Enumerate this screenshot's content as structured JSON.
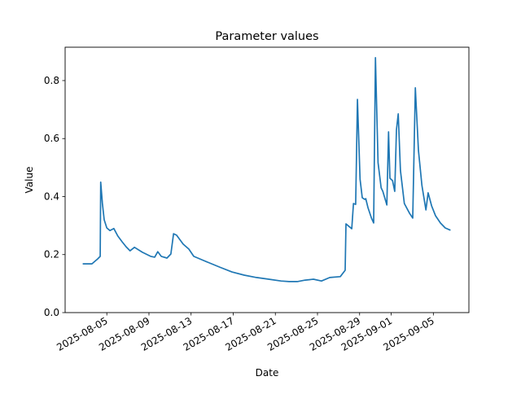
{
  "chart_data": {
    "type": "line",
    "title": "Parameter values",
    "xlabel": "Date",
    "ylabel": "Value",
    "xlim": [
      "2025-08-01T01:00",
      "2025-09-08T09:00"
    ],
    "ylim": [
      0,
      0.915
    ],
    "grid": false,
    "line_color": "#1f77b4",
    "xticks": [
      "2025-08-05",
      "2025-08-09",
      "2025-08-13",
      "2025-08-17",
      "2025-08-21",
      "2025-08-25",
      "2025-08-29",
      "2025-09-01",
      "2025-09-05"
    ],
    "yticks": [
      0.0,
      0.2,
      0.4,
      0.6,
      0.8
    ],
    "ytick_labels": [
      "0.0",
      "0.2",
      "0.4",
      "0.6",
      "0.8"
    ],
    "series": [
      {
        "x": [
          "2025-08-02T17:00",
          "2025-08-03T14:00",
          "2025-08-04T03:00",
          "2025-08-04T09:00",
          "2025-08-04T10:00",
          "2025-08-04T14:00",
          "2025-08-04T18:00",
          "2025-08-05T00:00",
          "2025-08-05T07:00",
          "2025-08-05T16:00",
          "2025-08-06T01:00",
          "2025-08-06T11:00",
          "2025-08-06T20:00",
          "2025-08-07T05:00",
          "2025-08-07T15:00",
          "2025-08-08T09:00",
          "2025-08-09T04:00",
          "2025-08-09T13:00",
          "2025-08-09T20:00",
          "2025-08-10T04:00",
          "2025-08-10T17:00",
          "2025-08-11T02:00",
          "2025-08-11T08:00",
          "2025-08-11T15:00",
          "2025-08-12T06:00",
          "2025-08-12T19:00",
          "2025-08-13T06:00",
          "2025-08-14T04:00",
          "2025-08-14T23:00",
          "2025-08-15T17:00",
          "2025-08-16T21:00",
          "2025-08-18T01:00",
          "2025-08-19T05:00",
          "2025-08-20T09:00",
          "2025-08-21T13:00",
          "2025-08-22T07:00",
          "2025-08-23T02:00",
          "2025-08-23T20:00",
          "2025-08-24T15:00",
          "2025-08-25T09:00",
          "2025-08-26T04:00",
          "2025-08-27T04:00",
          "2025-08-27T15:00",
          "2025-08-27T17:00",
          "2025-08-27T23:00",
          "2025-08-28T06:00",
          "2025-08-28T10:00",
          "2025-08-28T15:00",
          "2025-08-28T19:00",
          "2025-08-29T01:00",
          "2025-08-29T06:00",
          "2025-08-29T12:00",
          "2025-08-29T14:00",
          "2025-08-29T19:00",
          "2025-08-30T03:00",
          "2025-08-30T08:00",
          "2025-08-30T12:00",
          "2025-08-30T18:00",
          "2025-08-31T01:00",
          "2025-08-31T05:00",
          "2025-08-31T14:00",
          "2025-08-31T18:00",
          "2025-08-31T21:00",
          "2025-09-01T03:00",
          "2025-09-01T08:00",
          "2025-09-01T12:00",
          "2025-09-01T16:00",
          "2025-09-01T21:00",
          "2025-09-02T06:00",
          "2025-09-02T18:00",
          "2025-09-03T01:00",
          "2025-09-03T07:00",
          "2025-09-03T14:00",
          "2025-09-03T22:00",
          "2025-09-04T07:00",
          "2025-09-04T12:00",
          "2025-09-04T20:00",
          "2025-09-05T05:00",
          "2025-09-05T16:00",
          "2025-09-06T03:00",
          "2025-09-06T15:00"
        ],
        "y": [
          0.168,
          0.168,
          0.185,
          0.194,
          0.45,
          0.376,
          0.32,
          0.292,
          0.283,
          0.29,
          0.264,
          0.244,
          0.227,
          0.213,
          0.225,
          0.208,
          0.194,
          0.191,
          0.21,
          0.194,
          0.188,
          0.202,
          0.272,
          0.267,
          0.236,
          0.219,
          0.194,
          0.18,
          0.168,
          0.157,
          0.14,
          0.129,
          0.121,
          0.115,
          0.109,
          0.107,
          0.107,
          0.112,
          0.115,
          0.109,
          0.121,
          0.124,
          0.146,
          0.306,
          0.298,
          0.289,
          0.376,
          0.373,
          0.735,
          0.46,
          0.396,
          0.39,
          0.393,
          0.362,
          0.326,
          0.309,
          0.879,
          0.517,
          0.43,
          0.418,
          0.371,
          0.623,
          0.463,
          0.455,
          0.418,
          0.63,
          0.685,
          0.49,
          0.376,
          0.342,
          0.326,
          0.775,
          0.56,
          0.438,
          0.354,
          0.413,
          0.368,
          0.334,
          0.309,
          0.292,
          0.284
        ]
      }
    ]
  }
}
